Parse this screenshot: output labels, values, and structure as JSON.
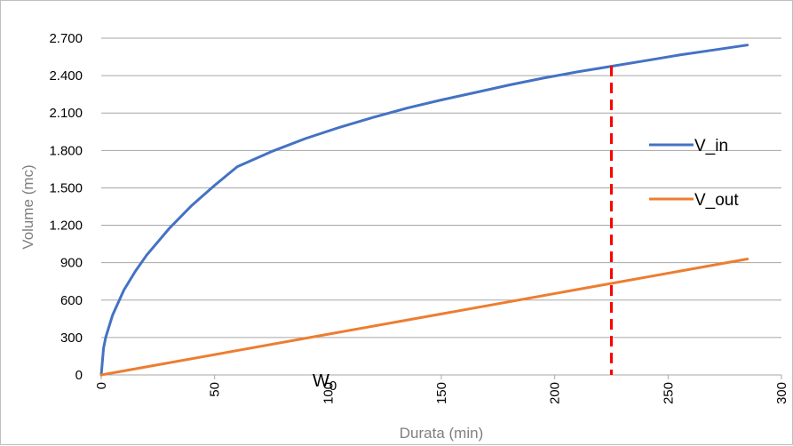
{
  "chart_data": {
    "type": "line",
    "title": "",
    "xlabel": "Durata (min)",
    "ylabel": "Volume (mc)",
    "xlim": [
      0,
      300
    ],
    "ylim": [
      0,
      2700
    ],
    "x_ticks": [
      0,
      50,
      100,
      150,
      200,
      250,
      300
    ],
    "x_tick_labels": [
      "0",
      "50",
      "100",
      "150",
      "200",
      "250",
      "300"
    ],
    "y_ticks": [
      0,
      300,
      600,
      900,
      1200,
      1500,
      1800,
      2100,
      2400,
      2700
    ],
    "y_tick_labels": [
      "0",
      "300",
      "600",
      "900",
      "1.200",
      "1.500",
      "1.800",
      "2.100",
      "2.400",
      "2.700"
    ],
    "grid": "horizontal",
    "legend_position": "right",
    "series": [
      {
        "name": "V_in",
        "color": "#4472c4",
        "x": [
          0,
          1,
          2,
          5,
          10,
          15,
          20,
          30,
          40,
          50,
          60,
          75,
          90,
          105,
          120,
          135,
          150,
          165,
          180,
          195,
          210,
          225,
          240,
          255,
          270,
          285
        ],
        "y": [
          0,
          215,
          303,
          480,
          680,
          830,
          960,
          1175,
          1360,
          1520,
          1670,
          1790,
          1895,
          1985,
          2065,
          2140,
          2205,
          2265,
          2325,
          2380,
          2430,
          2475,
          2520,
          2565,
          2605,
          2645
        ]
      },
      {
        "name": "V_out",
        "color": "#ed7d31",
        "x": [
          0,
          285
        ],
        "y": [
          0,
          930
        ]
      }
    ],
    "reference_line": {
      "x": 225,
      "color": "#ff0000",
      "style": "dashed"
    },
    "annotations": [
      {
        "text": "W0",
        "base": "W",
        "sub": "0",
        "x": 97,
        "y": 0
      }
    ]
  }
}
